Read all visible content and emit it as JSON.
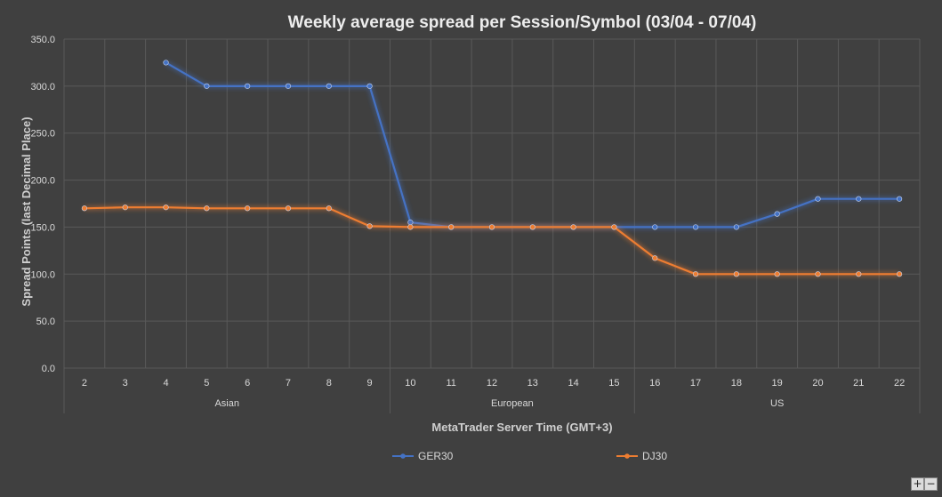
{
  "chart_data": {
    "type": "line",
    "title": "Weekly average spread per Session/Symbol (03/04 - 07/04)",
    "xlabel": "MetaTrader Server Time (GMT+3)",
    "ylabel": "Spread Points (last Decimal Place)",
    "categories": [
      "2",
      "3",
      "4",
      "5",
      "6",
      "7",
      "8",
      "9",
      "10",
      "11",
      "12",
      "13",
      "14",
      "15",
      "16",
      "17",
      "18",
      "19",
      "20",
      "21",
      "22"
    ],
    "groups": [
      {
        "label": "Asian",
        "from": "2",
        "to": "9"
      },
      {
        "label": "European",
        "from": "10",
        "to": "15"
      },
      {
        "label": "US",
        "from": "16",
        "to": "22"
      }
    ],
    "ylim": [
      0,
      350
    ],
    "yticks": [
      "0.0",
      "50.0",
      "100.0",
      "150.0",
      "200.0",
      "250.0",
      "300.0",
      "350.0"
    ],
    "grid": true,
    "legend_position": "bottom",
    "series": [
      {
        "name": "GER30",
        "color": "#4472c4",
        "values": [
          null,
          null,
          325,
          300,
          300,
          300,
          300,
          300,
          155,
          150,
          150,
          150,
          150,
          150,
          150,
          150,
          150,
          164,
          180,
          180,
          180
        ]
      },
      {
        "name": "DJ30",
        "color": "#ed7d31",
        "values": [
          170,
          171,
          171,
          170,
          170,
          170,
          170,
          151,
          150,
          150,
          150,
          150,
          150,
          150,
          117,
          100,
          100,
          100,
          100,
          100,
          100
        ]
      }
    ]
  },
  "controls": {
    "zoom_in": "+",
    "zoom_out": "−"
  }
}
